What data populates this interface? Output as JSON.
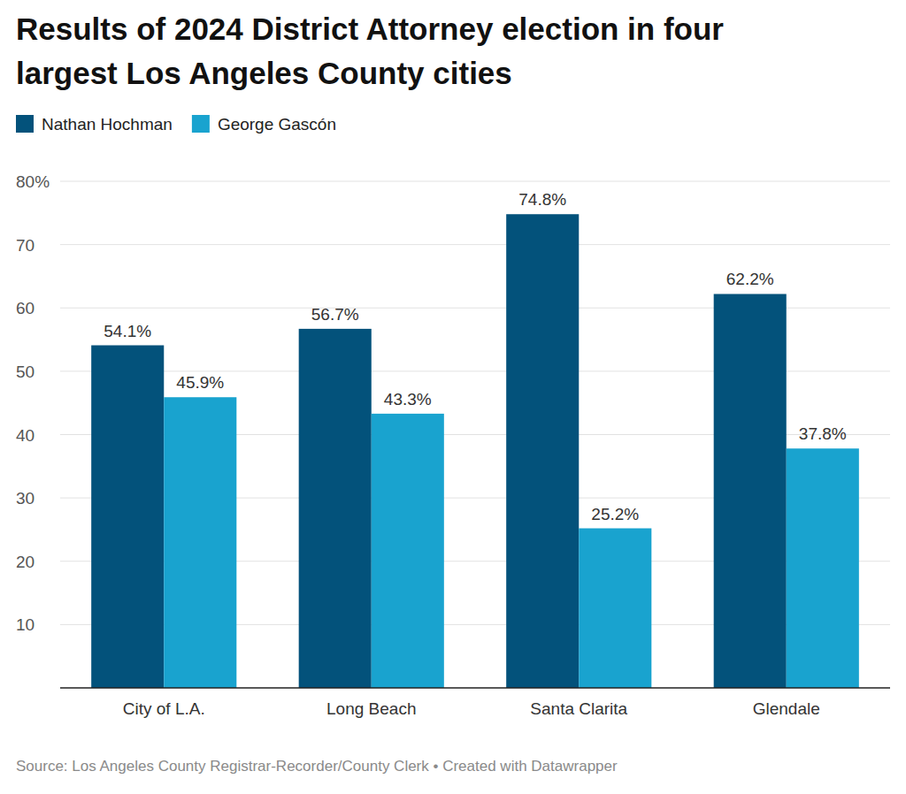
{
  "chart_data": {
    "type": "bar",
    "title": "Results of 2024 District Attorney election in four largest Los Angeles County cities",
    "source": "Source: Los Angeles County Registrar-Recorder/County Clerk • Created with Datawrapper",
    "categories": [
      "City of L.A.",
      "Long Beach",
      "Santa Clarita",
      "Glendale"
    ],
    "series": [
      {
        "name": "Nathan Hochman",
        "color": "#03527b",
        "values": [
          54.1,
          56.7,
          74.8,
          62.2
        ],
        "value_labels": [
          "54.1%",
          "56.7%",
          "74.8%",
          "62.2%"
        ]
      },
      {
        "name": "George Gascón",
        "color": "#19a3cf",
        "values": [
          45.9,
          43.3,
          25.2,
          37.8
        ],
        "value_labels": [
          "45.9%",
          "43.3%",
          "25.2%",
          "37.8%"
        ]
      }
    ],
    "ylim": [
      0,
      80
    ],
    "yticks": [
      10,
      20,
      30,
      40,
      50,
      60,
      70,
      {
        "value": 80,
        "label": "80%"
      }
    ],
    "grid": true,
    "legend": "top-left",
    "data_labels": true
  }
}
